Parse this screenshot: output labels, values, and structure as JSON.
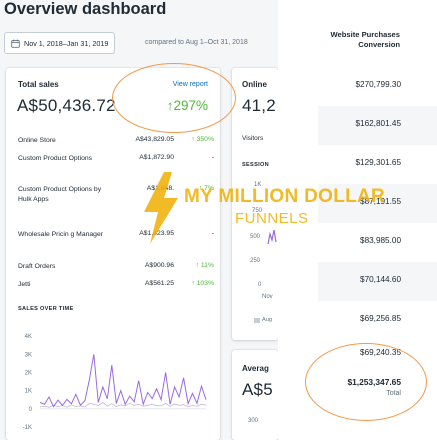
{
  "page": {
    "title": "Overview dashboard"
  },
  "date_filter": {
    "range": "Nov 1, 2018–Jan 31, 2019",
    "compare": "compared to Aug 1–Oct 31, 2018"
  },
  "total_sales": {
    "title": "Total sales",
    "link": "View report",
    "amount": "A$50,436.72",
    "growth": "↑297%",
    "rows": [
      {
        "channel": "Online Store",
        "value": "A$43,829.05",
        "change": "↑ 350%"
      },
      {
        "channel": "Custom Product Options",
        "value": "A$1,872.90",
        "change": "-"
      },
      {
        "channel": "Custom Product Options by Hulk Apps",
        "value": "A$1,848.",
        "change": "↑ 7%"
      },
      {
        "channel": "Wholesale Pricin g Manager",
        "value": "A$1,423.95",
        "change": "-"
      },
      {
        "channel": "Draft Orders",
        "value": "A$900.96",
        "change": "↑ 11%"
      },
      {
        "channel": "Jetti",
        "value": "A$561.25",
        "change": "↑ 103%"
      }
    ],
    "over_time_label": "SALES OVER TIME"
  },
  "online_card": {
    "title": "Online",
    "amount": "41,2",
    "visitors": "Visitors",
    "sessions": "SESSION",
    "ticks": [
      "1K",
      "750",
      "500",
      "250",
      "0"
    ],
    "axis_label": "Nov",
    "legend": "Aug"
  },
  "avg_card": {
    "title": "Averag",
    "amount": "A$5",
    "tick": "300"
  },
  "conversion": {
    "header": "Website Purchases Conversion",
    "rows": [
      "$270,799.30",
      "$162,801.45",
      "$129,301.65",
      "$87,191.55",
      "$83,985.00",
      "$70,144.60",
      "$69,256.85",
      "$69,240.35"
    ],
    "total_value": "$1,253,347.65",
    "total_label": "Total"
  },
  "watermark": {
    "line1": "MY MILLION DOLLAR",
    "line2": "FUNNELS"
  },
  "chart_data": {
    "type": "line",
    "title": "SALES OVER TIME",
    "y_ticks": [
      "4K",
      "3K",
      "2K",
      "1K",
      "0",
      "-1K"
    ],
    "ylim": [
      -1000,
      4500
    ],
    "series": [
      {
        "values": [
          350,
          250,
          650,
          120,
          480,
          180,
          520,
          280,
          800,
          200,
          450,
          1600,
          3000,
          350,
          1200,
          550,
          2400,
          300,
          1000,
          250,
          700,
          380,
          1550,
          250,
          900,
          560,
          1100,
          500,
          2000,
          250,
          1200,
          650,
          1700,
          280,
          850,
          300,
          1250,
          500
        ]
      },
      {
        "values": [
          100,
          150,
          80,
          200,
          120,
          180,
          90,
          220,
          130,
          160,
          100,
          300,
          250,
          180,
          350,
          150,
          280,
          120,
          220,
          160,
          300,
          180,
          260,
          140,
          200,
          240,
          180,
          160,
          300,
          140,
          260,
          200,
          220,
          120,
          180,
          150,
          260,
          200
        ]
      }
    ],
    "colors": [
      "#9c6ade",
      "#c4b5e3"
    ]
  }
}
